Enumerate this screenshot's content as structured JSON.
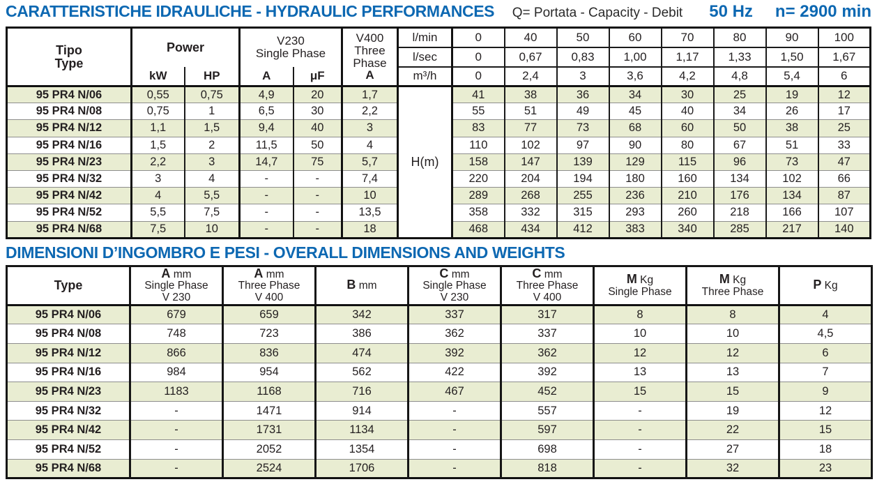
{
  "page": {
    "title1": "CARATTERISTICHE IDRAULICHE - HYDRAULIC PERFORMANCES",
    "subtitle_q": "Q= Portata - Capacity - Debit",
    "freq": "50 Hz",
    "speed": "n= 2900 min",
    "title2": "DIMENSIONI D’INGOMBRO E PESI - OVERALL DIMENSIONS AND WEIGHTS"
  },
  "colors": {
    "accent_blue": "#0d68b2",
    "stripe_green": "#e9edd2",
    "text": "#231f20"
  },
  "hydraulic_table": {
    "header": {
      "tipo": "Tipo",
      "type": "Type",
      "power": "Power",
      "kw": "kW",
      "hp": "HP",
      "v230_line1": "V230",
      "v230_line2": "Single Phase",
      "a": "A",
      "uf": "μF",
      "v400_line1": "V400",
      "v400_line2": "Three",
      "v400_line3": "Phase",
      "v400_a": "A",
      "units": [
        "l/min",
        "l/sec",
        "m³/h"
      ],
      "flow_lmin": [
        "0",
        "40",
        "50",
        "60",
        "70",
        "80",
        "90",
        "100"
      ],
      "flow_lsec": [
        "0",
        "0,67",
        "0,83",
        "1,00",
        "1,17",
        "1,33",
        "1,50",
        "1,67"
      ],
      "flow_m3h": [
        "0",
        "2,4",
        "3",
        "3,6",
        "4,2",
        "4,8",
        "5,4",
        "6"
      ],
      "head_label": "H(m)"
    },
    "rows": [
      {
        "type": "95 PR4 N/06",
        "kw": "0,55",
        "hp": "0,75",
        "a": "4,9",
        "uf": "20",
        "a400": "1,7",
        "h": [
          "41",
          "38",
          "36",
          "34",
          "30",
          "25",
          "19",
          "12"
        ]
      },
      {
        "type": "95 PR4 N/08",
        "kw": "0,75",
        "hp": "1",
        "a": "6,5",
        "uf": "30",
        "a400": "2,2",
        "h": [
          "55",
          "51",
          "49",
          "45",
          "40",
          "34",
          "26",
          "17"
        ]
      },
      {
        "type": "95 PR4 N/12",
        "kw": "1,1",
        "hp": "1,5",
        "a": "9,4",
        "uf": "40",
        "a400": "3",
        "h": [
          "83",
          "77",
          "73",
          "68",
          "60",
          "50",
          "38",
          "25"
        ]
      },
      {
        "type": "95 PR4 N/16",
        "kw": "1,5",
        "hp": "2",
        "a": "11,5",
        "uf": "50",
        "a400": "4",
        "h": [
          "110",
          "102",
          "97",
          "90",
          "80",
          "67",
          "51",
          "33"
        ]
      },
      {
        "type": "95 PR4 N/23",
        "kw": "2,2",
        "hp": "3",
        "a": "14,7",
        "uf": "75",
        "a400": "5,7",
        "h": [
          "158",
          "147",
          "139",
          "129",
          "115",
          "96",
          "73",
          "47"
        ]
      },
      {
        "type": "95 PR4 N/32",
        "kw": "3",
        "hp": "4",
        "a": "-",
        "uf": "-",
        "a400": "7,4",
        "h": [
          "220",
          "204",
          "194",
          "180",
          "160",
          "134",
          "102",
          "66"
        ]
      },
      {
        "type": "95 PR4 N/42",
        "kw": "4",
        "hp": "5,5",
        "a": "-",
        "uf": "-",
        "a400": "10",
        "h": [
          "289",
          "268",
          "255",
          "236",
          "210",
          "176",
          "134",
          "87"
        ]
      },
      {
        "type": "95 PR4 N/52",
        "kw": "5,5",
        "hp": "7,5",
        "a": "-",
        "uf": "-",
        "a400": "13,5",
        "h": [
          "358",
          "332",
          "315",
          "293",
          "260",
          "218",
          "166",
          "107"
        ]
      },
      {
        "type": "95 PR4 N/68",
        "kw": "7,5",
        "hp": "10",
        "a": "-",
        "uf": "-",
        "a400": "18",
        "h": [
          "468",
          "434",
          "412",
          "383",
          "340",
          "285",
          "217",
          "140"
        ]
      }
    ]
  },
  "dimensions_table": {
    "type_label": "Type",
    "columns": [
      {
        "sym": "A",
        "unit": "mm",
        "line2": "Single Phase",
        "line3": "V 230"
      },
      {
        "sym": "A",
        "unit": "mm",
        "line2": "Three Phase",
        "line3": "V 400"
      },
      {
        "sym": "B",
        "unit": "mm"
      },
      {
        "sym": "C",
        "unit": "mm",
        "line2": "Single Phase",
        "line3": "V 230"
      },
      {
        "sym": "C",
        "unit": "mm",
        "line2": "Three Phase",
        "line3": "V 400"
      },
      {
        "sym": "M",
        "unit": "Kg",
        "line2": "Single Phase"
      },
      {
        "sym": "M",
        "unit": "Kg",
        "line2": "Three Phase"
      },
      {
        "sym": "P",
        "unit": "Kg"
      }
    ],
    "rows": [
      {
        "type": "95 PR4 N/06",
        "values": [
          "679",
          "659",
          "342",
          "337",
          "317",
          "8",
          "8",
          "4"
        ]
      },
      {
        "type": "95 PR4 N/08",
        "values": [
          "748",
          "723",
          "386",
          "362",
          "337",
          "10",
          "10",
          "4,5"
        ]
      },
      {
        "type": "95 PR4 N/12",
        "values": [
          "866",
          "836",
          "474",
          "392",
          "362",
          "12",
          "12",
          "6"
        ]
      },
      {
        "type": "95 PR4 N/16",
        "values": [
          "984",
          "954",
          "562",
          "422",
          "392",
          "13",
          "13",
          "7"
        ]
      },
      {
        "type": "95 PR4 N/23",
        "values": [
          "1183",
          "1168",
          "716",
          "467",
          "452",
          "15",
          "15",
          "9"
        ]
      },
      {
        "type": "95 PR4 N/32",
        "values": [
          "-",
          "1471",
          "914",
          "-",
          "557",
          "-",
          "19",
          "12"
        ]
      },
      {
        "type": "95 PR4 N/42",
        "values": [
          "-",
          "1731",
          "1134",
          "-",
          "597",
          "-",
          "22",
          "15"
        ]
      },
      {
        "type": "95 PR4 N/52",
        "values": [
          "-",
          "2052",
          "1354",
          "-",
          "698",
          "-",
          "27",
          "18"
        ]
      },
      {
        "type": "95 PR4 N/68",
        "values": [
          "-",
          "2524",
          "1706",
          "-",
          "818",
          "-",
          "32",
          "23"
        ]
      }
    ]
  }
}
